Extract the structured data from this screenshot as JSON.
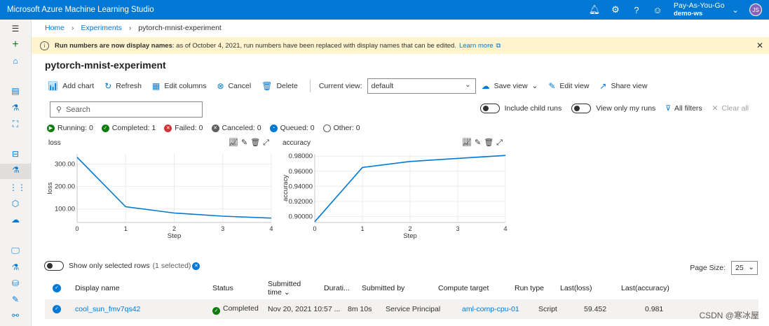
{
  "app": {
    "title": "Microsoft Azure Machine Learning Studio",
    "subscription": "Pay-As-You-Go",
    "workspace": "demo-ws",
    "avatar_initials": "JS",
    "accent": "#0078d4"
  },
  "breadcrumb": [
    "Home",
    "Experiments",
    "pytorch-mnist-experiment"
  ],
  "banner": {
    "bold": "Run numbers are now display names",
    "message": ": as of October 4, 2021, run numbers have been replaced with display names that can be edited.",
    "link": "Learn more"
  },
  "page_title": "pytorch-mnist-experiment",
  "toolbar": {
    "add_chart": "Add chart",
    "refresh": "Refresh",
    "edit_columns": "Edit columns",
    "cancel": "Cancel",
    "delete": "Delete",
    "current_view_label": "Current view:",
    "current_view_value": "default",
    "save_view": "Save view",
    "edit_view": "Edit view",
    "share_view": "Share view"
  },
  "search": {
    "placeholder": "Search"
  },
  "filters": {
    "include_child_runs": "Include child runs",
    "view_only_my_runs": "View only my runs",
    "all_filters": "All filters",
    "clear_all": "Clear all"
  },
  "status_counts": [
    {
      "label": "Running: 0",
      "color": "#107c10",
      "icon": "play"
    },
    {
      "label": "Completed: 1",
      "color": "#107c10",
      "icon": "check"
    },
    {
      "label": "Failed: 0",
      "color": "#d13438",
      "icon": "x"
    },
    {
      "label": "Canceled: 0",
      "color": "#605e5c",
      "icon": "x"
    },
    {
      "label": "Queued: 0",
      "color": "#0078d4",
      "icon": "clock"
    },
    {
      "label": "Other: 0",
      "color": "#ffffff",
      "icon": "circle"
    }
  ],
  "chart_data": [
    {
      "type": "line",
      "title": "loss",
      "xlabel": "Step",
      "ylabel": "loss",
      "x": [
        0,
        1,
        2,
        3,
        4
      ],
      "xticks": [
        "0",
        "1",
        "2",
        "3",
        "4"
      ],
      "yticks": [
        "100.00",
        "200.00",
        "300.00"
      ],
      "series": [
        {
          "values": [
            330,
            110,
            82,
            68,
            59.452
          ]
        }
      ],
      "ylim": [
        40,
        345
      ],
      "grid": true
    },
    {
      "type": "line",
      "title": "accuracy",
      "xlabel": "Step",
      "ylabel": "accuracy",
      "x": [
        0,
        1,
        2,
        3,
        4
      ],
      "xticks": [
        "0",
        "1",
        "2",
        "3",
        "4"
      ],
      "yticks": [
        "0.90000",
        "0.92000",
        "0.94000",
        "0.96000",
        "0.98000"
      ],
      "series": [
        {
          "values": [
            0.893,
            0.965,
            0.973,
            0.977,
            0.981
          ]
        }
      ],
      "ylim": [
        0.892,
        0.983
      ],
      "grid": true
    }
  ],
  "table": {
    "show_selected_label": "Show only selected rows",
    "selected_count": "(1 selected)",
    "page_size_label": "Page Size:",
    "page_size": "25",
    "columns": [
      "Display name",
      "Status",
      "Submitted time",
      "Durati...",
      "Submitted by",
      "Compute target",
      "Run type",
      "Last(loss)",
      "Last(accuracy)"
    ],
    "rows": [
      [
        "cool_sun_fmv7qs42",
        "Completed",
        "Nov 20, 2021 10:57 ...",
        "8m 10s",
        "Service Principal",
        "aml-comp-cpu-01",
        "Script",
        "59.452",
        "0.981"
      ]
    ]
  },
  "watermark": "CSDN @寒冰屋"
}
